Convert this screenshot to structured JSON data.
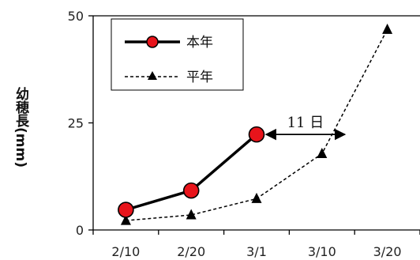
{
  "chart_data": {
    "type": "line",
    "categories": [
      "2/10",
      "2/20",
      "3/1",
      "3/10",
      "3/20"
    ],
    "ylabel": "幼穂長(mm)",
    "ylim": [
      0,
      50
    ],
    "yticks": [
      "0",
      "25",
      "50"
    ],
    "grid": false,
    "legend_position": "top-left",
    "series": [
      {
        "name": "本年",
        "style": "solid",
        "marker": "circle",
        "line_color": "#000000",
        "marker_color": "#e8141b",
        "x": [
          0,
          1,
          2
        ],
        "values": [
          4.7,
          9.2,
          22.3
        ]
      },
      {
        "name": "平年",
        "style": "dashed",
        "marker": "triangle",
        "line_color": "#000000",
        "marker_color": "#000000",
        "x": [
          0,
          1,
          2,
          3,
          4
        ],
        "values": [
          2.2,
          3.5,
          7.3,
          17.8,
          46.8
        ]
      }
    ],
    "annotations": [
      {
        "text": "11 日",
        "type": "double-arrow",
        "from_x": 2,
        "to_x": 3.35,
        "y": 22.3
      }
    ]
  }
}
